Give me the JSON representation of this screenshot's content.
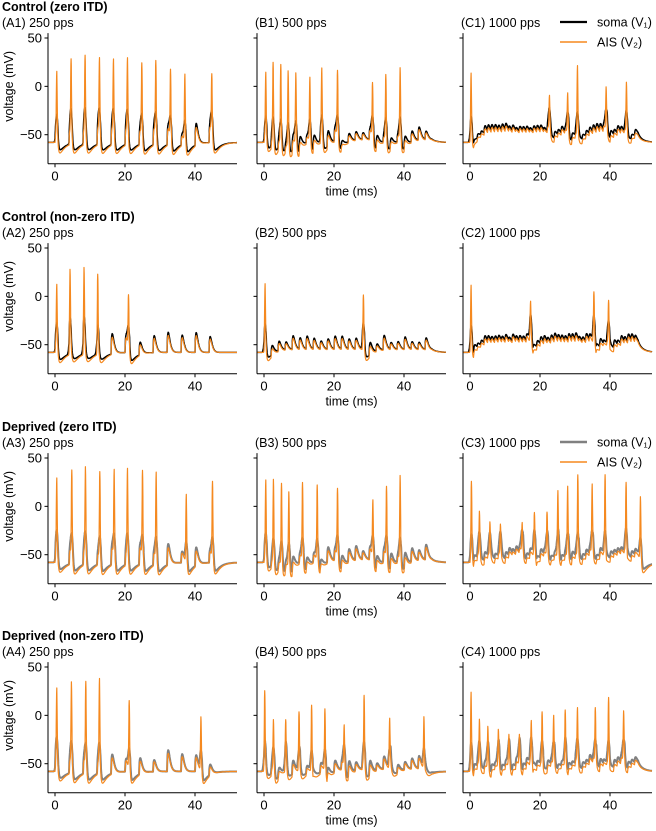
{
  "figure": {
    "xlabel": "time (ms)",
    "ylabel": "voltage (mV)",
    "legend": {
      "soma": "soma (V₁)",
      "ais": "AIS (V₂)"
    },
    "colors": {
      "soma_control": "#000000",
      "soma_deprived": "#808080",
      "ais": "#f5891f"
    }
  },
  "chart_data": [
    {
      "type": "line",
      "group": "Control (zero ITD)",
      "title": "(A1) 250 pps",
      "rate_pps": 250,
      "soma": "control",
      "legend": false,
      "xlim": [
        -2,
        52
      ],
      "ylim": [
        -80,
        55
      ],
      "xticks": [
        0,
        20,
        40
      ],
      "yticks": [
        50,
        0,
        -50
      ],
      "ais_spikes_ms_mV": [
        [
          0.5,
          21
        ],
        [
          4.6,
          30
        ],
        [
          8.6,
          33
        ],
        [
          12.7,
          31
        ],
        [
          16.7,
          30
        ],
        [
          20.7,
          32
        ],
        [
          24.8,
          30
        ],
        [
          28.8,
          31
        ],
        [
          33,
          25
        ],
        [
          37.1,
          24
        ],
        [
          44.8,
          16
        ]
      ]
    },
    {
      "type": "line",
      "group": "Control (zero ITD)",
      "title": "(B1) 500 pps",
      "rate_pps": 500,
      "soma": "control",
      "legend": false,
      "xlim": [
        -2,
        52
      ],
      "ylim": [
        -80,
        55
      ],
      "xticks": [
        0,
        20,
        40
      ],
      "yticks": [
        50,
        0,
        -50
      ],
      "ais_spikes_ms_mV": [
        [
          0.5,
          21
        ],
        [
          2.6,
          35
        ],
        [
          4.8,
          35
        ],
        [
          6.9,
          32
        ],
        [
          9.1,
          28
        ],
        [
          13.1,
          20
        ],
        [
          16.5,
          26
        ],
        [
          21,
          23
        ],
        [
          31,
          10
        ],
        [
          34.8,
          21
        ],
        [
          38.9,
          28
        ]
      ]
    },
    {
      "type": "line",
      "group": "Control (zero ITD)",
      "title": "(C1) 1000 pps",
      "rate_pps": 1000,
      "soma": "control",
      "legend": true,
      "xlim": [
        -2,
        52
      ],
      "ylim": [
        -80,
        55
      ],
      "xticks": [
        0,
        20,
        40
      ],
      "yticks": [
        50,
        0,
        -50
      ],
      "ais_spikes_ms_mV": [
        [
          0.3,
          21
        ],
        [
          22.7,
          -10
        ],
        [
          27.9,
          -4
        ],
        [
          30.7,
          26
        ],
        [
          38.9,
          0
        ],
        [
          44.7,
          6
        ]
      ]
    },
    {
      "type": "line",
      "group": "Control (non-zero ITD)",
      "title": "(A2) 250 pps",
      "rate_pps": 250,
      "soma": "control",
      "legend": false,
      "xlim": [
        -2,
        52
      ],
      "ylim": [
        -80,
        55
      ],
      "xticks": [
        0,
        20,
        40
      ],
      "yticks": [
        50,
        0,
        -50
      ],
      "ais_spikes_ms_mV": [
        [
          0.5,
          16
        ],
        [
          4.3,
          28
        ],
        [
          8.3,
          29
        ],
        [
          12.2,
          30
        ],
        [
          21,
          8
        ]
      ]
    },
    {
      "type": "line",
      "group": "Control (non-zero ITD)",
      "title": "(B2) 500 pps",
      "rate_pps": 500,
      "soma": "control",
      "legend": false,
      "xlim": [
        -2,
        52
      ],
      "ylim": [
        -80,
        55
      ],
      "xticks": [
        0,
        20,
        40
      ],
      "yticks": [
        50,
        0,
        -50
      ],
      "ais_spikes_ms_mV": [
        [
          0.3,
          18
        ],
        [
          28.4,
          5
        ]
      ]
    },
    {
      "type": "line",
      "group": "Control (non-zero ITD)",
      "title": "(C2) 1000 pps",
      "rate_pps": 1000,
      "soma": "control",
      "legend": false,
      "xlim": [
        -2,
        52
      ],
      "ylim": [
        -80,
        55
      ],
      "xticks": [
        0,
        20,
        40
      ],
      "yticks": [
        50,
        0,
        -50
      ],
      "ais_spikes_ms_mV": [
        [
          0.3,
          18
        ],
        [
          17.3,
          -9
        ],
        [
          35.4,
          2
        ],
        [
          39.6,
          -2
        ]
      ]
    },
    {
      "type": "line",
      "group": "Deprived (zero ITD)",
      "title": "(A3) 250 pps",
      "rate_pps": 250,
      "soma": "deprived",
      "legend": false,
      "xlim": [
        -2,
        52
      ],
      "ylim": [
        -80,
        55
      ],
      "xticks": [
        0,
        20,
        40
      ],
      "yticks": [
        50,
        0,
        -50
      ],
      "ais_spikes_ms_mV": [
        [
          0.5,
          31
        ],
        [
          4.8,
          43
        ],
        [
          8.7,
          45
        ],
        [
          12.8,
          44
        ],
        [
          16.9,
          44
        ],
        [
          20.7,
          45
        ],
        [
          25,
          44
        ],
        [
          28.9,
          44
        ],
        [
          37.5,
          24
        ],
        [
          45,
          34
        ]
      ]
    },
    {
      "type": "line",
      "group": "Deprived (zero ITD)",
      "title": "(B3) 500 pps",
      "rate_pps": 500,
      "soma": "deprived",
      "legend": false,
      "xlim": [
        -2,
        52
      ],
      "ylim": [
        -80,
        55
      ],
      "xticks": [
        0,
        20,
        40
      ],
      "yticks": [
        50,
        0,
        -50
      ],
      "ais_spikes_ms_mV": [
        [
          0.5,
          31
        ],
        [
          2.7,
          39
        ],
        [
          5,
          38
        ],
        [
          7.1,
          31
        ],
        [
          11,
          34
        ],
        [
          15.2,
          32
        ],
        [
          21,
          25
        ],
        [
          31.1,
          13
        ],
        [
          35,
          28
        ],
        [
          38.9,
          41
        ]
      ]
    },
    {
      "type": "line",
      "group": "Deprived (zero ITD)",
      "title": "(C3) 1000 pps",
      "rate_pps": 1000,
      "soma": "deprived",
      "legend": true,
      "xlim": [
        -2,
        52
      ],
      "ylim": [
        -80,
        55
      ],
      "xticks": [
        0,
        20,
        40
      ],
      "yticks": [
        50,
        0,
        -50
      ],
      "ais_spikes_ms_mV": [
        [
          0.4,
          31
        ],
        [
          2.7,
          0
        ],
        [
          5.7,
          -11
        ],
        [
          8.7,
          -14
        ],
        [
          14.9,
          -15
        ],
        [
          18.4,
          -4
        ],
        [
          22,
          -1
        ],
        [
          25.1,
          19
        ],
        [
          27.9,
          27
        ],
        [
          30.8,
          38
        ],
        [
          34.9,
          26
        ],
        [
          38.6,
          36
        ],
        [
          44.6,
          25
        ],
        [
          48.7,
          19
        ]
      ]
    },
    {
      "type": "line",
      "group": "Deprived (non-zero ITD)",
      "title": "(A4) 250 pps",
      "rate_pps": 250,
      "soma": "deprived",
      "legend": false,
      "xlim": [
        -2,
        52
      ],
      "ylim": [
        -80,
        55
      ],
      "xticks": [
        0,
        20,
        40
      ],
      "yticks": [
        50,
        0,
        -50
      ],
      "ais_spikes_ms_mV": [
        [
          0.5,
          28
        ],
        [
          4.7,
          39
        ],
        [
          8.8,
          41
        ],
        [
          12.7,
          44
        ],
        [
          21.2,
          25
        ],
        [
          41.7,
          10
        ]
      ]
    },
    {
      "type": "line",
      "group": "Deprived (non-zero ITD)",
      "title": "(B4) 500 pps",
      "rate_pps": 500,
      "soma": "deprived",
      "legend": false,
      "xlim": [
        -2,
        52
      ],
      "ylim": [
        -80,
        55
      ],
      "xticks": [
        0,
        20,
        40
      ],
      "yticks": [
        50,
        0,
        -50
      ],
      "ais_spikes_ms_mV": [
        [
          0.2,
          29
        ],
        [
          2.7,
          6
        ],
        [
          6.2,
          1
        ],
        [
          10,
          16
        ],
        [
          13.6,
          23
        ],
        [
          17.4,
          18
        ],
        [
          22.9,
          -3
        ],
        [
          28.6,
          25
        ],
        [
          35.9,
          7
        ],
        [
          45.7,
          8
        ]
      ]
    },
    {
      "type": "line",
      "group": "Deprived (non-zero ITD)",
      "title": "(C4) 1000 pps",
      "rate_pps": 1000,
      "soma": "deprived",
      "legend": false,
      "xlim": [
        -2,
        52
      ],
      "ylim": [
        -80,
        55
      ],
      "xticks": [
        0,
        20,
        40
      ],
      "yticks": [
        50,
        0,
        -50
      ],
      "ais_spikes_ms_mV": [
        [
          0.3,
          29
        ],
        [
          2.7,
          1
        ],
        [
          5.1,
          -5
        ],
        [
          8.1,
          -10
        ],
        [
          11.1,
          -16
        ],
        [
          14.1,
          -17
        ],
        [
          17.5,
          -4
        ],
        [
          20.6,
          8
        ],
        [
          23.9,
          5
        ],
        [
          27.2,
          7
        ],
        [
          30.7,
          10
        ],
        [
          35.8,
          10
        ],
        [
          39.6,
          22
        ],
        [
          43.9,
          7
        ]
      ]
    }
  ]
}
